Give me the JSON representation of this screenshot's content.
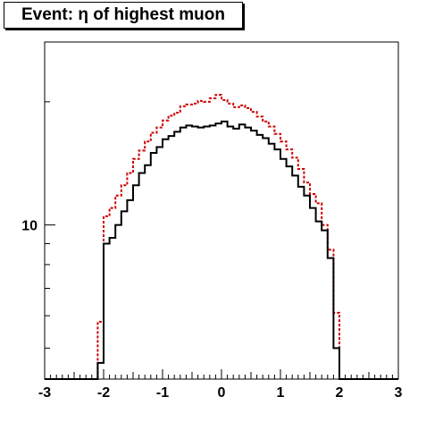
{
  "chart_data": {
    "type": "line",
    "title": "Event: η of highest muon",
    "xlabel": "",
    "ylabel": "",
    "xlim": [
      -3,
      3
    ],
    "y_log_scale": true,
    "ylim": [
      4.2,
      28
    ],
    "x_ticks": [
      "-3",
      "-2",
      "-1",
      "0",
      "1",
      "2",
      "3"
    ],
    "y_ticks": [
      "10"
    ],
    "grid": false,
    "bin_edges": [
      -3.0,
      -2.9,
      -2.8,
      -2.7,
      -2.6,
      -2.5,
      -2.4,
      -2.3,
      -2.2,
      -2.1,
      -2.0,
      -1.9,
      -1.8,
      -1.7,
      -1.6,
      -1.5,
      -1.4,
      -1.3,
      -1.2,
      -1.1,
      -1.0,
      -0.9,
      -0.8,
      -0.7,
      -0.6,
      -0.5,
      -0.4,
      -0.3,
      -0.2,
      -0.1,
      0.0,
      0.1,
      0.2,
      0.3,
      0.4,
      0.5,
      0.6,
      0.7,
      0.8,
      0.9,
      1.0,
      1.1,
      1.2,
      1.3,
      1.4,
      1.5,
      1.6,
      1.7,
      1.8,
      1.9,
      2.0,
      2.1,
      2.2,
      2.3,
      2.4,
      2.5,
      2.6,
      2.7,
      2.8,
      2.9,
      3.0
    ],
    "series": [
      {
        "color": "#000000",
        "style": "solid",
        "values": [
          4.2,
          4.2,
          4.2,
          4.2,
          4.2,
          4.2,
          4.2,
          4.2,
          4.2,
          4.6,
          9.0,
          9.3,
          10.0,
          10.8,
          11.5,
          12.5,
          13.4,
          14.0,
          15.0,
          15.5,
          16.2,
          16.5,
          16.9,
          17.3,
          17.5,
          17.4,
          17.3,
          17.4,
          17.5,
          17.7,
          17.9,
          17.4,
          17.2,
          17.6,
          17.3,
          17.0,
          16.6,
          16.3,
          15.8,
          15.3,
          14.5,
          13.9,
          13.2,
          12.4,
          11.8,
          11.0,
          10.2,
          9.7,
          8.3,
          5.0,
          4.2,
          4.2,
          4.2,
          4.2,
          4.2,
          4.2,
          4.2,
          4.2,
          4.2,
          4.2
        ]
      },
      {
        "color": "#cc0000",
        "style": "dashed",
        "values": [
          4.2,
          4.2,
          4.2,
          4.2,
          4.2,
          4.2,
          4.2,
          4.2,
          4.2,
          5.8,
          10.5,
          11.0,
          11.8,
          12.5,
          13.4,
          14.5,
          15.2,
          16.0,
          16.8,
          17.3,
          18.0,
          18.5,
          18.8,
          19.5,
          19.7,
          19.8,
          20.1,
          20.0,
          20.4,
          20.8,
          20.2,
          19.8,
          19.4,
          19.6,
          19.3,
          18.9,
          18.4,
          17.9,
          17.4,
          16.7,
          16.0,
          15.3,
          14.6,
          13.7,
          12.7,
          11.9,
          11.3,
          10.0,
          8.7,
          6.1,
          4.2,
          4.2,
          4.2,
          4.2,
          4.2,
          4.2,
          4.2,
          4.2,
          4.2,
          4.2
        ]
      }
    ]
  }
}
